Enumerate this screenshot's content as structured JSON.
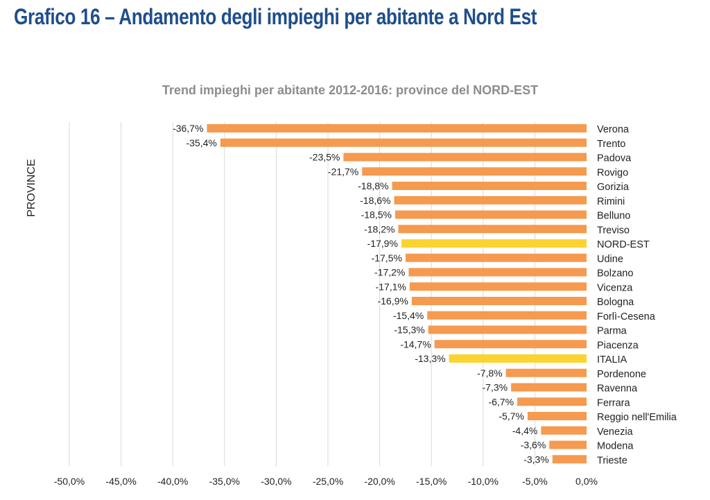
{
  "page": {
    "title": "Grafico 16 – Andamento degli impieghi per abitante a Nord Est"
  },
  "chart_data": {
    "type": "bar",
    "orientation": "horizontal",
    "title": "Trend impieghi per abitante 2012-2016: province del NORD-EST",
    "ylabel": "PROVINCE",
    "xlabel": "",
    "xlim": [
      -50,
      0
    ],
    "x_ticks": [
      -50,
      -45,
      -40,
      -35,
      -30,
      -25,
      -20,
      -15,
      -10,
      -5,
      0
    ],
    "x_tick_labels": [
      "-50,0%",
      "-45,0%",
      "-40,0%",
      "-35,0%",
      "-30,0%",
      "-25,0%",
      "-20,0%",
      "-15,0%",
      "-10,0%",
      "-5,0%",
      "0,0%"
    ],
    "grid": true,
    "legend": "none",
    "categories": [
      "Verona",
      "Trento",
      "Padova",
      "Rovigo",
      "Gorizia",
      "Rimini",
      "Belluno",
      "Treviso",
      "NORD-EST",
      "Udine",
      "Bolzano",
      "Vicenza",
      "Bologna",
      "Forlì-Cesena",
      "Parma",
      "Piacenza",
      "ITALIA",
      "Pordenone",
      "Ravenna",
      "Ferrara",
      "Reggio nell'Emilia",
      "Venezia",
      "Modena",
      "Trieste"
    ],
    "values": [
      -36.7,
      -35.4,
      -23.5,
      -21.7,
      -18.8,
      -18.6,
      -18.5,
      -18.2,
      -17.9,
      -17.5,
      -17.2,
      -17.1,
      -16.9,
      -15.4,
      -15.3,
      -14.7,
      -13.3,
      -7.8,
      -7.3,
      -6.7,
      -5.7,
      -4.4,
      -3.6,
      -3.3
    ],
    "value_labels": [
      "-36,7%",
      "-35,4%",
      "-23,5%",
      "-21,7%",
      "-18,8%",
      "-18,6%",
      "-18,5%",
      "-18,2%",
      "-17,9%",
      "-17,5%",
      "-17,2%",
      "-17,1%",
      "-16,9%",
      "-15,4%",
      "-15,3%",
      "-14,7%",
      "-13,3%",
      "-7,8%",
      "-7,3%",
      "-6,7%",
      "-5,7%",
      "-4,4%",
      "-3,6%",
      "-3,3%"
    ],
    "highlighted": [
      "NORD-EST",
      "ITALIA"
    ],
    "colors": {
      "bar": "#f59a4e",
      "highlight": "#fbd431",
      "grid": "#d9d9d9"
    }
  }
}
